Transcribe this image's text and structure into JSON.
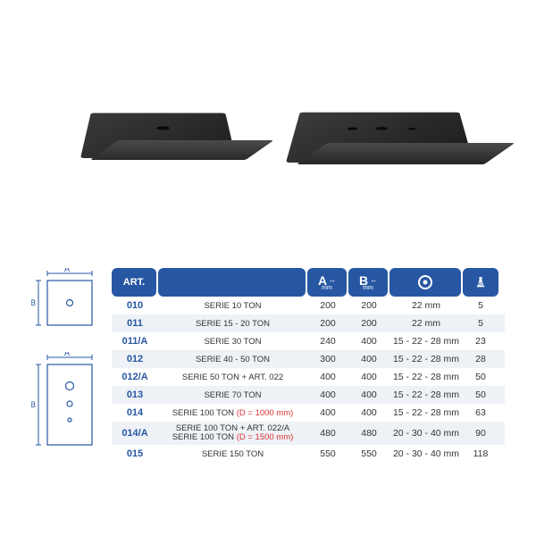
{
  "headers": {
    "art": "ART.",
    "a": "A",
    "b": "B",
    "mm": "mm",
    "kg": "KG"
  },
  "diagrams": {
    "labelA": "A",
    "labelB": "B"
  },
  "rows": [
    {
      "art": "010",
      "desc": "SERIE 10 TON",
      "a": "200",
      "b": "200",
      "hole": "22 mm",
      "kg": "5"
    },
    {
      "art": "011",
      "desc": "SERIE 15 - 20 TON",
      "a": "200",
      "b": "200",
      "hole": "22 mm",
      "kg": "5"
    },
    {
      "art": "011/A",
      "desc": "SERIE 30 TON",
      "a": "240",
      "b": "400",
      "hole": "15 - 22 - 28 mm",
      "kg": "23"
    },
    {
      "art": "012",
      "desc": "SERIE 40 - 50 TON",
      "a": "300",
      "b": "400",
      "hole": "15 - 22 - 28 mm",
      "kg": "28"
    },
    {
      "art": "012/A",
      "desc": "SERIE 50 TON + ART. 022",
      "a": "400",
      "b": "400",
      "hole": "15 - 22 - 28 mm",
      "kg": "50"
    },
    {
      "art": "013",
      "desc": "SERIE 70 TON",
      "a": "400",
      "b": "400",
      "hole": "15 - 22 - 28 mm",
      "kg": "50"
    },
    {
      "art": "014",
      "desc": "SERIE 100 TON <span class=\"red\">(D = 1000 mm)</span>",
      "a": "400",
      "b": "400",
      "hole": "15 - 22 - 28 mm",
      "kg": "63",
      "html": true
    },
    {
      "art": "014/A",
      "desc": "SERIE 100 TON + ART. 022/A<br>SERIE 100 TON <span class=\"red\">(D = 1500 mm)</span>",
      "a": "480",
      "b": "480",
      "hole": "20 - 30 - 40 mm",
      "kg": "90",
      "html": true,
      "tall": true
    },
    {
      "art": "015",
      "desc": "SERIE 150 TON",
      "a": "550",
      "b": "550",
      "hole": "20 - 30 - 40 mm",
      "kg": "118"
    }
  ],
  "colors": {
    "brand": "#2757a3",
    "rowAlt": "#eef1f6",
    "text": "#333333",
    "red": "#d33"
  }
}
